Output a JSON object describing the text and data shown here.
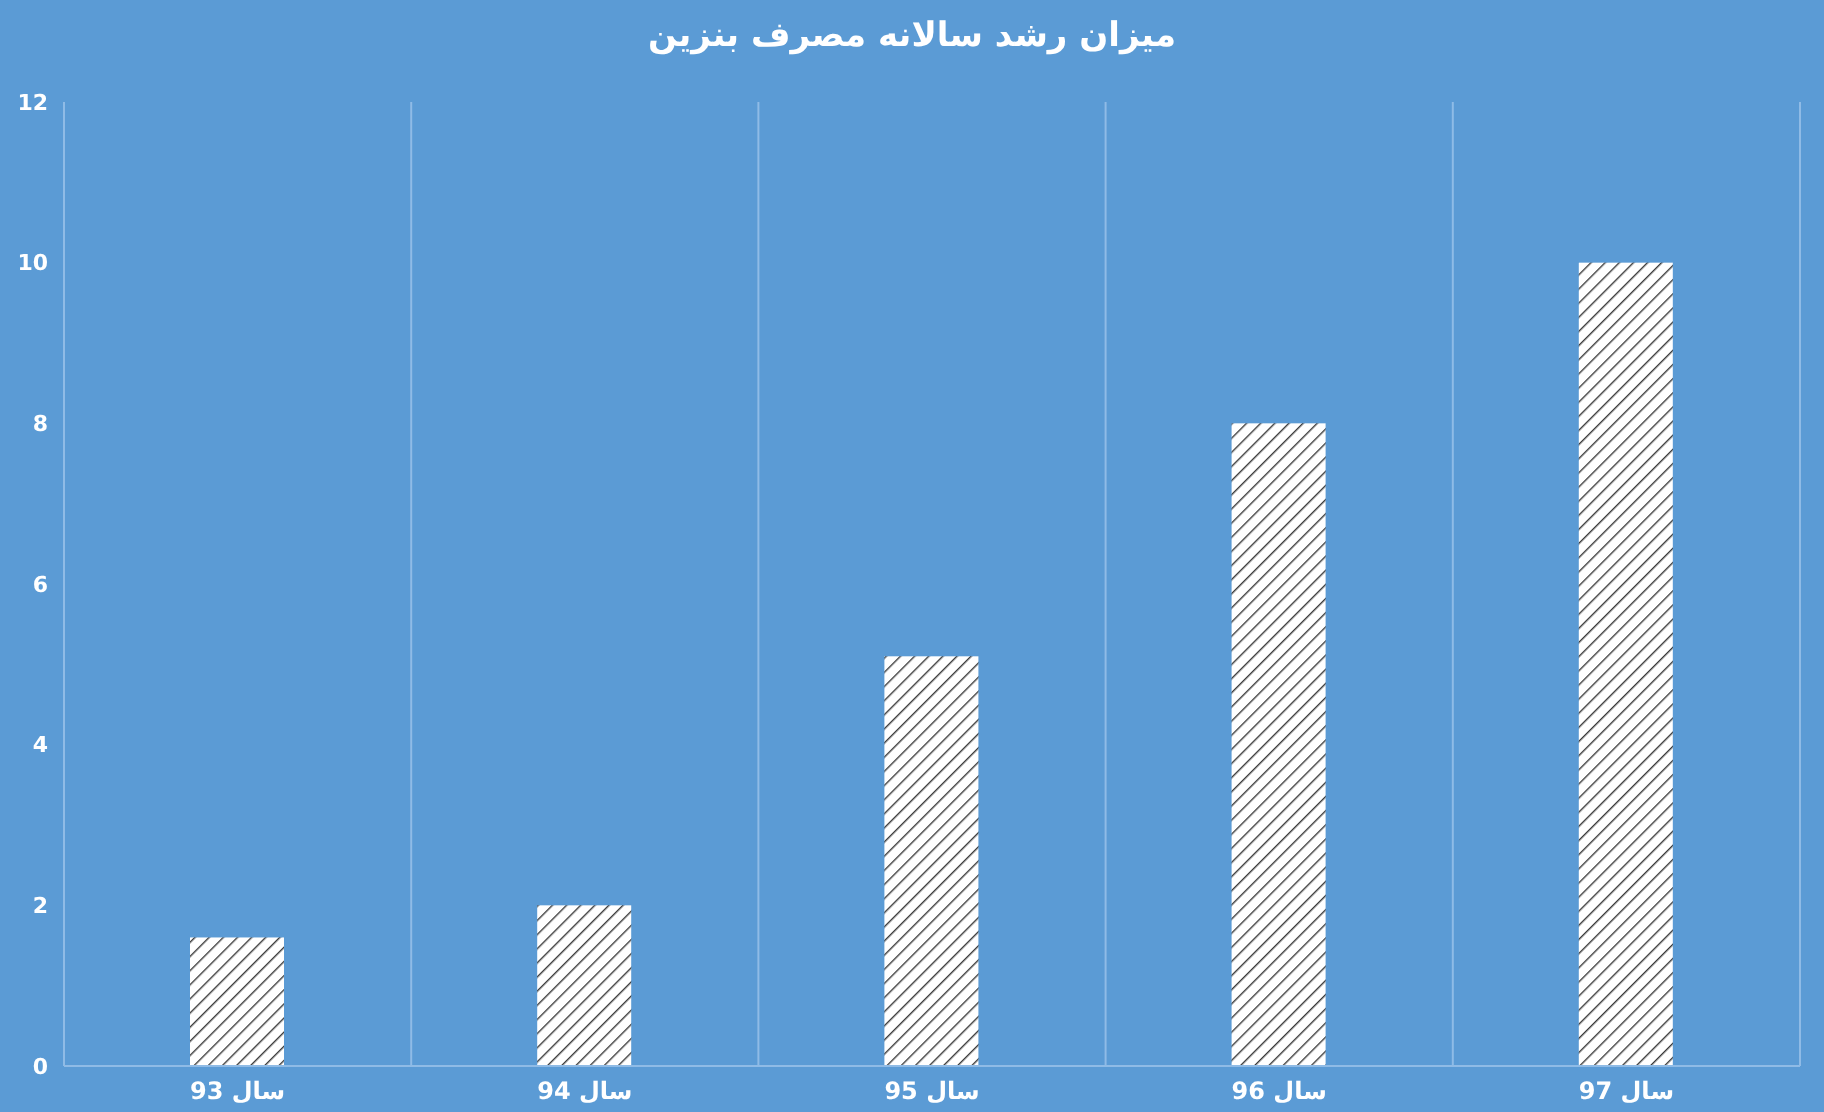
{
  "chart_data": {
    "type": "bar",
    "title": "میزان رشد سالانه مصرف بنزین",
    "categories": [
      "سال 93",
      "سال 94",
      "سال 95",
      "سال 96",
      "سال 97"
    ],
    "values": [
      1.6,
      2.0,
      5.1,
      8.0,
      10.0
    ],
    "color": "#ffffff",
    "ylim": [
      0,
      12
    ],
    "yticks": [
      0,
      2,
      4,
      6,
      8,
      10,
      12
    ],
    "grid": "x"
  }
}
